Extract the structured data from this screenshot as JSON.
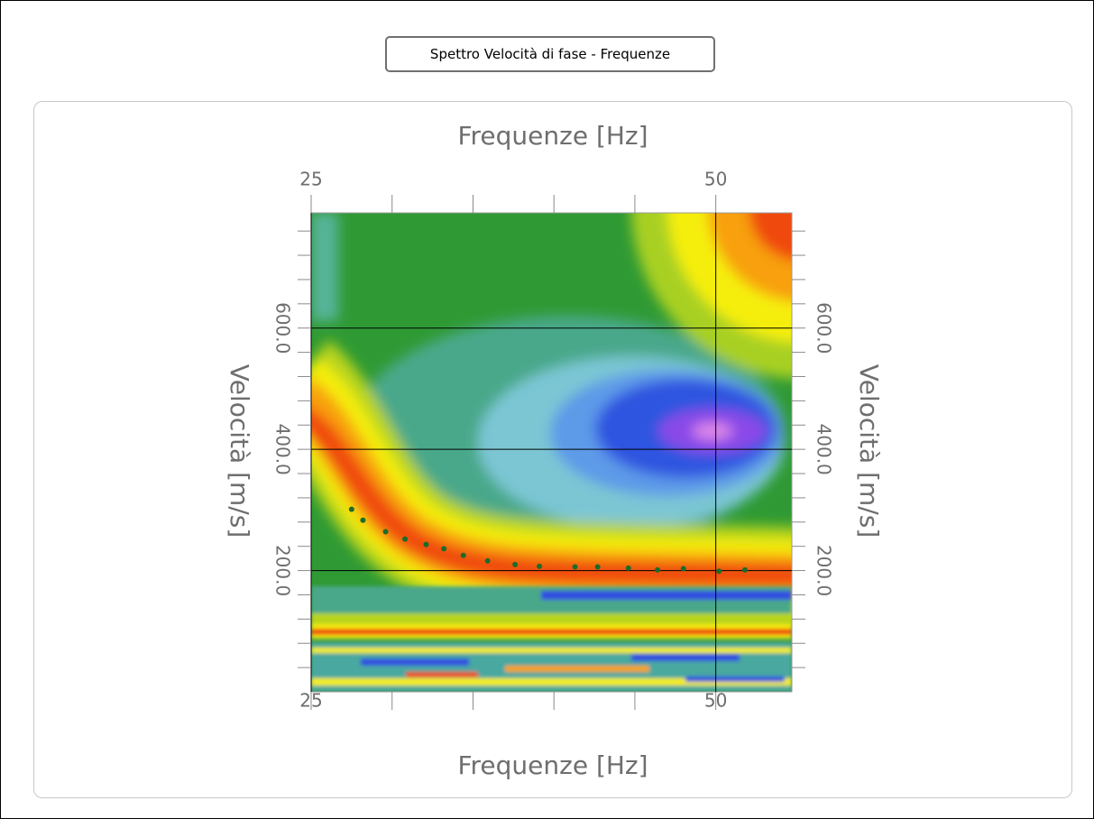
{
  "button": {
    "label": "Spettro Velocità di fase - Frequenze"
  },
  "chart_data": {
    "type": "scatter",
    "x_label": "Frequenze [Hz]",
    "y_label": "Velocità [m/s]",
    "x": [
      27.5,
      28.2,
      29.6,
      30.8,
      32.1,
      33.2,
      34.4,
      35.9,
      37.6,
      39.1,
      41.3,
      42.7,
      44.6,
      46.4,
      48.0,
      50.2,
      51.8
    ],
    "values": [
      301,
      283,
      264,
      252,
      243,
      236,
      225,
      216,
      210,
      207,
      206,
      206,
      204,
      201,
      203,
      199,
      201
    ],
    "color": "#1d6b2a",
    "xlim": [
      25,
      54.7
    ],
    "ylim": [
      0,
      790
    ],
    "xticks": [
      25,
      50
    ],
    "xminorticks": [
      30,
      35,
      40,
      45
    ],
    "yticks": [
      {
        "value": 200,
        "label": "200.0"
      },
      {
        "value": 400,
        "label": "400.0"
      },
      {
        "value": 600,
        "label": "600.0"
      }
    ],
    "yminorticks": [
      40,
      80,
      120,
      160,
      240,
      280,
      320,
      360,
      440,
      480,
      520,
      560,
      640,
      680,
      720,
      760
    ],
    "grid": true
  }
}
